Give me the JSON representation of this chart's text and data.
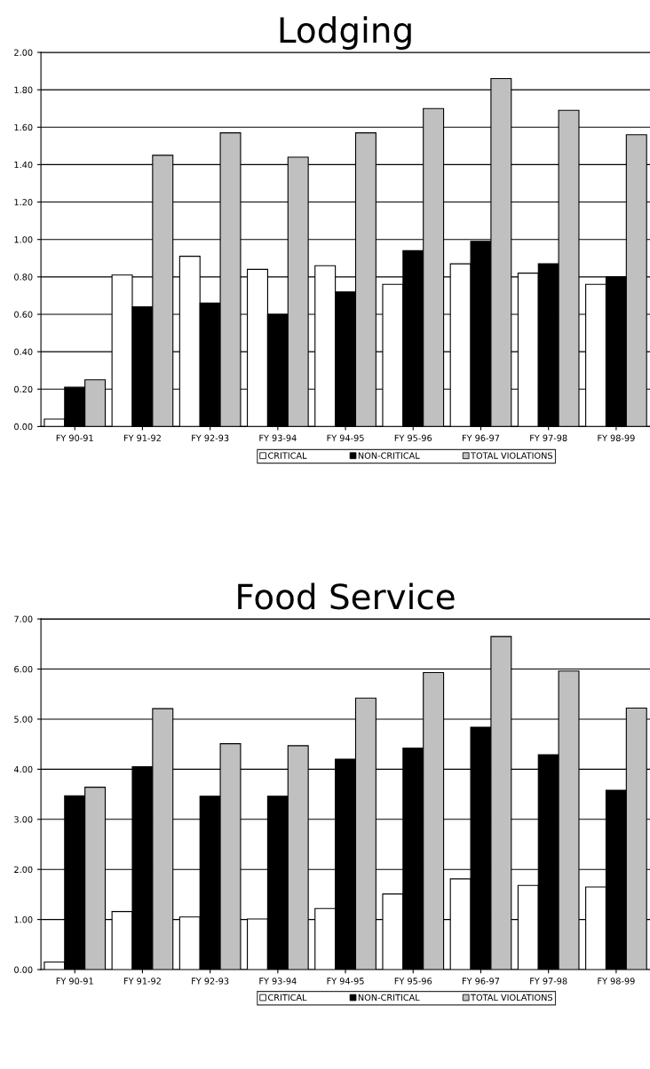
{
  "chart_data": [
    {
      "type": "bar",
      "title": "Lodging",
      "categories": [
        "FY 90-91",
        "FY 91-92",
        "FY 92-93",
        "FY 93-94",
        "FY 94-95",
        "FY 95-96",
        "FY 96-97",
        "FY 97-98",
        "FY 98-99"
      ],
      "series": [
        {
          "name": "CRITICAL",
          "color": "#ffffff",
          "values": [
            0.04,
            0.81,
            0.91,
            0.84,
            0.86,
            0.76,
            0.87,
            0.82,
            0.76
          ]
        },
        {
          "name": "NON-CRITICAL",
          "color": "#000000",
          "values": [
            0.21,
            0.64,
            0.66,
            0.6,
            0.72,
            0.94,
            0.99,
            0.87,
            0.8
          ]
        },
        {
          "name": "TOTAL VIOLATIONS",
          "color": "#c0c0c0",
          "values": [
            0.25,
            1.45,
            1.57,
            1.44,
            1.57,
            1.7,
            1.86,
            1.69,
            1.56
          ]
        }
      ],
      "ylim": [
        0,
        2
      ],
      "yticks": [
        {
          "value": 0,
          "label": "0.00"
        },
        {
          "value": 0.2,
          "label": "0.20"
        },
        {
          "value": 0.4,
          "label": "0.40"
        },
        {
          "value": 0.6,
          "label": "0.60"
        },
        {
          "value": 0.8,
          "label": "0.80"
        },
        {
          "value": 1.0,
          "label": "1.00"
        },
        {
          "value": 1.2,
          "label": "1.20"
        },
        {
          "value": 1.4,
          "label": "1.40"
        },
        {
          "value": 1.6,
          "label": "1.60"
        },
        {
          "value": 1.8,
          "label": "1.80"
        },
        {
          "value": 2.0,
          "label": "2.00"
        }
      ],
      "grid": "y",
      "legend": "bottom"
    },
    {
      "type": "bar",
      "title": "Food Service",
      "categories": [
        "FY 90-91",
        "FY 91-92",
        "FY 92-93",
        "FY 93-94",
        "FY 94-95",
        "FY 95-96",
        "FY 96-97",
        "FY 97-98",
        "FY 98-99"
      ],
      "series": [
        {
          "name": "CRITICAL",
          "color": "#ffffff",
          "values": [
            0.15,
            1.16,
            1.05,
            1.01,
            1.22,
            1.51,
            1.81,
            1.68,
            1.65
          ]
        },
        {
          "name": "NON-CRITICAL",
          "color": "#000000",
          "values": [
            3.47,
            4.05,
            3.46,
            3.46,
            4.2,
            4.42,
            4.84,
            4.29,
            3.58
          ]
        },
        {
          "name": "TOTAL VIOLATIONS",
          "color": "#c0c0c0",
          "values": [
            3.64,
            5.21,
            4.51,
            4.47,
            5.42,
            5.93,
            6.65,
            5.96,
            5.22
          ]
        }
      ],
      "ylim": [
        0,
        7
      ],
      "yticks": [
        {
          "value": 0,
          "label": "0.00"
        },
        {
          "value": 1,
          "label": "1.00"
        },
        {
          "value": 2,
          "label": "2.00"
        },
        {
          "value": 3,
          "label": "3.00"
        },
        {
          "value": 4,
          "label": "4.00"
        },
        {
          "value": 5,
          "label": "5.00"
        },
        {
          "value": 6,
          "label": "6.00"
        },
        {
          "value": 7,
          "label": "7.00"
        }
      ],
      "grid": "y",
      "legend": "bottom"
    }
  ]
}
